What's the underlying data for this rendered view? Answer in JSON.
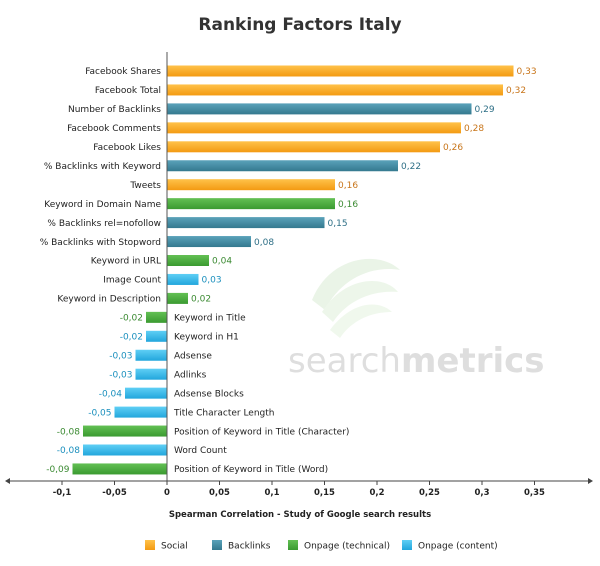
{
  "chart_data": {
    "type": "bar",
    "orientation": "horizontal",
    "title": "Ranking Factors Italy",
    "xlabel": "Spearman Correlation - Study of Google search results",
    "xlim": [
      -0.15,
      0.4
    ],
    "xticks": [
      -0.1,
      -0.05,
      0,
      0.05,
      0.1,
      0.15,
      0.2,
      0.25,
      0.3,
      0.35
    ],
    "xtick_labels": [
      "-0,1",
      "-0,05",
      "0",
      "0,05",
      "0,1",
      "0,15",
      "0,2",
      "0,25",
      "0,3",
      "0,35"
    ],
    "grid": false,
    "legend_position": "bottom",
    "categories_legend": [
      {
        "key": "social",
        "label": "Social",
        "color": "#f7a21b"
      },
      {
        "key": "backlinks",
        "label": "Backlinks",
        "color": "#3e89a3"
      },
      {
        "key": "onpage_technical",
        "label": "Onpage (technical)",
        "color": "#46a83b"
      },
      {
        "key": "onpage_content",
        "label": "Onpage (content)",
        "color": "#2cb6e8"
      }
    ],
    "bars": [
      {
        "label": "Facebook Shares",
        "value": 0.33,
        "value_label": "0,33",
        "group": "social"
      },
      {
        "label": "Facebook Total",
        "value": 0.32,
        "value_label": "0,32",
        "group": "social"
      },
      {
        "label": "Number of Backlinks",
        "value": 0.29,
        "value_label": "0,29",
        "group": "backlinks"
      },
      {
        "label": "Facebook Comments",
        "value": 0.28,
        "value_label": "0,28",
        "group": "social"
      },
      {
        "label": "Facebook Likes",
        "value": 0.26,
        "value_label": "0,26",
        "group": "social"
      },
      {
        "label": "% Backlinks with Keyword",
        "value": 0.22,
        "value_label": "0,22",
        "group": "backlinks"
      },
      {
        "label": "Tweets",
        "value": 0.16,
        "value_label": "0,16",
        "group": "social"
      },
      {
        "label": "Keyword in Domain Name",
        "value": 0.16,
        "value_label": "0,16",
        "group": "onpage_technical"
      },
      {
        "label": "% Backlinks rel=nofollow",
        "value": 0.15,
        "value_label": "0,15",
        "group": "backlinks"
      },
      {
        "label": "% Backlinks with Stopword",
        "value": 0.08,
        "value_label": "0,08",
        "group": "backlinks"
      },
      {
        "label": "Keyword in URL",
        "value": 0.04,
        "value_label": "0,04",
        "group": "onpage_technical"
      },
      {
        "label": "Image Count",
        "value": 0.03,
        "value_label": "0,03",
        "group": "onpage_content"
      },
      {
        "label": "Keyword in Description",
        "value": 0.02,
        "value_label": "0,02",
        "group": "onpage_technical"
      },
      {
        "label": "Keyword in Title",
        "value": -0.02,
        "value_label": "-0,02",
        "group": "onpage_technical"
      },
      {
        "label": "Keyword in H1",
        "value": -0.02,
        "value_label": "-0,02",
        "group": "onpage_content"
      },
      {
        "label": "Adsense",
        "value": -0.03,
        "value_label": "-0,03",
        "group": "onpage_content"
      },
      {
        "label": "Adlinks",
        "value": -0.03,
        "value_label": "-0,03",
        "group": "onpage_content"
      },
      {
        "label": "Adsense Blocks",
        "value": -0.04,
        "value_label": "-0,04",
        "group": "onpage_content"
      },
      {
        "label": "Title Character Length",
        "value": -0.05,
        "value_label": "-0,05",
        "group": "onpage_content"
      },
      {
        "label": "Position of Keyword in Title (Character)",
        "value": -0.08,
        "value_label": "-0,08",
        "group": "onpage_technical"
      },
      {
        "label": "Word Count",
        "value": -0.08,
        "value_label": "-0,08",
        "group": "onpage_content"
      },
      {
        "label": "Position of Keyword in Title (Word)",
        "value": -0.09,
        "value_label": "-0,09",
        "group": "onpage_technical"
      }
    ]
  },
  "value_label_colors": {
    "social": "#c8751a",
    "backlinks": "#2e6f86",
    "onpage_technical": "#3b8a32",
    "onpage_content": "#1a8fbd"
  },
  "watermark": {
    "text_light": "search",
    "text_bold": "metrics"
  }
}
